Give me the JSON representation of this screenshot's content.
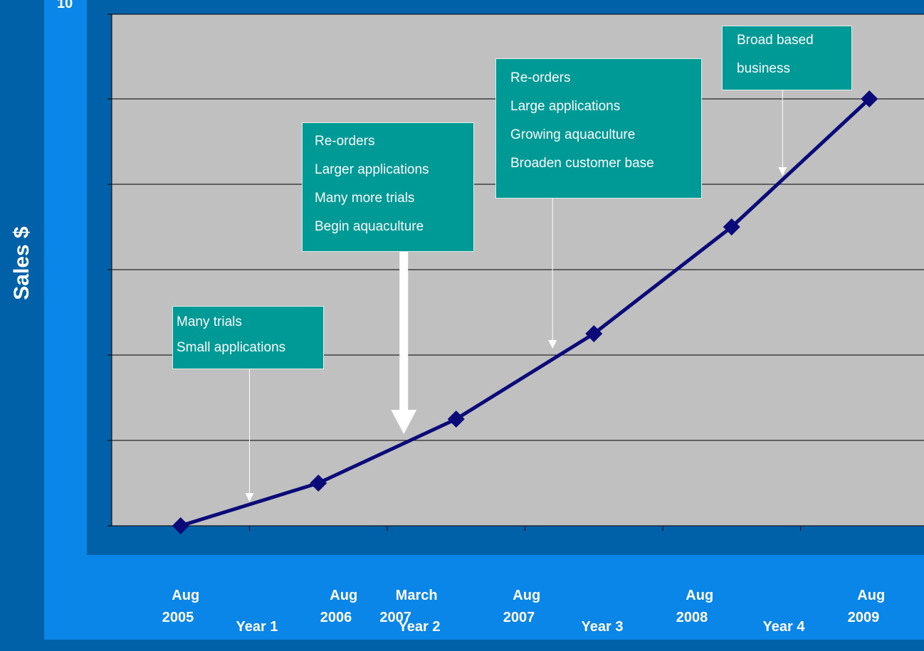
{
  "y_axis_title": "Sales $",
  "cut_off_top_label": "10",
  "colors": {
    "background": "#0060a8",
    "band": "#0a85e8",
    "plot_area": "#c0c0c0",
    "series_line": "#0a0a78",
    "annotation_box": "#009a96"
  },
  "chart_data": {
    "type": "line",
    "title": "",
    "xlabel": "",
    "ylabel": "Sales $",
    "grid": true,
    "legend": "none",
    "ylim": [
      0,
      5
    ],
    "x_tick_labels": [
      {
        "line1": "Aug",
        "line2": "2005"
      },
      {
        "line1": "Aug",
        "line2": "2006"
      },
      {
        "line1": "March",
        "line2": "2007"
      },
      {
        "line1": "Aug",
        "line2": "2007"
      },
      {
        "line1": "Aug",
        "line2": "2008"
      },
      {
        "line1": "Aug",
        "line2": "2009"
      }
    ],
    "year_labels": [
      "Year 1",
      "Year 2",
      "Year 3",
      "Year 4"
    ],
    "series": [
      {
        "x": [
          0.5,
          1.5,
          2.5,
          3.5,
          4.5,
          5.5
        ],
        "values": [
          0,
          0.5,
          1.25,
          2.25,
          3.5,
          5
        ]
      }
    ],
    "annotations": [
      {
        "lines": [
          "Many trials",
          "Small applications"
        ],
        "arrow_to_x": 1.0
      },
      {
        "lines": [
          "Re-orders",
          "Larger applications",
          "Many more trials",
          "Begin aquaculture"
        ],
        "arrow_to_x": 2.12
      },
      {
        "lines": [
          "Re-orders",
          "Large applications",
          "Growing aquaculture",
          "Broaden customer base"
        ],
        "arrow_to_x": 3.2
      },
      {
        "lines": [
          "Broad based",
          "business"
        ],
        "arrow_to_x": 4.87
      }
    ]
  }
}
